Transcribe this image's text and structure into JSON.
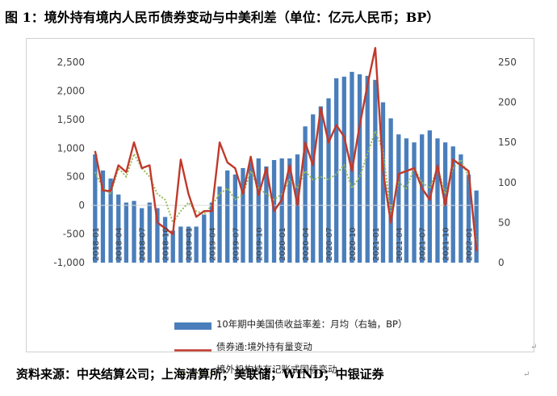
{
  "figure": {
    "title": "图 1：境外持有境内人民币债券变动与中美利差（单位：亿元人民币；BP）",
    "source": "资料来源：中央结算公司；上海清算所；美联储；WIND；中银证券"
  },
  "colors": {
    "bar": "#4a7ebb",
    "line": "#c0392b",
    "dotted": "#9bbb59"
  },
  "chart_data": {
    "type": "bar+line",
    "x": [
      "2018-01",
      "2018-02",
      "2018-03",
      "2018-04",
      "2018-05",
      "2018-06",
      "2018-07",
      "2018-08",
      "2018-09",
      "2018-10",
      "2018-11",
      "2018-12",
      "2019-01",
      "2019-02",
      "2019-03",
      "2019-04",
      "2019-05",
      "2019-06",
      "2019-07",
      "2019-08",
      "2019-09",
      "2019-10",
      "2019-11",
      "2019-12",
      "2020-01",
      "2020-02",
      "2020-03",
      "2020-04",
      "2020-05",
      "2020-06",
      "2020-07",
      "2020-08",
      "2020-09",
      "2020-10",
      "2020-11",
      "2020-12",
      "2021-01",
      "2021-02",
      "2021-03",
      "2021-04",
      "2021-05",
      "2021-06",
      "2021-07",
      "2021-08",
      "2021-09",
      "2021-10",
      "2021-11",
      "2021-12",
      "2022-01",
      "2022-02"
    ],
    "x_tick_labels": [
      "2018-01",
      "2018-04",
      "2018-07",
      "2018-10",
      "2019-01",
      "2019-04",
      "2019-07",
      "2019-10",
      "2020-01",
      "2020-04",
      "2020-07",
      "2020-10",
      "2021-01",
      "2021-04",
      "2021-07",
      "2021-10",
      "2022-01"
    ],
    "left_axis": {
      "ylim": [
        -1000,
        2500
      ],
      "ticks": [
        "-1,000",
        "-500",
        "0",
        "500",
        "1,000",
        "1,500",
        "2,000",
        "2,500"
      ]
    },
    "right_axis": {
      "ylim": [
        0,
        250
      ],
      "ticks": [
        "0",
        "50",
        "100",
        "150",
        "200",
        "250"
      ]
    },
    "series": [
      {
        "name": "10年期中美国债收益率差：月均（右轴，BP）",
        "type": "bar",
        "axis": "right",
        "values": [
          135,
          115,
          105,
          85,
          75,
          77,
          68,
          75,
          68,
          57,
          40,
          45,
          45,
          45,
          60,
          75,
          95,
          115,
          110,
          118,
          125,
          130,
          120,
          128,
          130,
          130,
          135,
          170,
          185,
          195,
          205,
          230,
          232,
          238,
          235,
          233,
          228,
          200,
          180,
          160,
          155,
          150,
          160,
          165,
          155,
          150,
          145,
          135,
          110,
          90
        ]
      },
      {
        "name": "债券通:境外持有量变动",
        "type": "line",
        "axis": "left",
        "values": [
          950,
          260,
          250,
          700,
          580,
          1100,
          650,
          700,
          -300,
          -400,
          -500,
          800,
          200,
          -200,
          -100,
          -100,
          1100,
          750,
          650,
          200,
          850,
          180,
          650,
          -100,
          100,
          700,
          0,
          1100,
          700,
          1700,
          1100,
          1400,
          1200,
          600,
          1400,
          2100,
          2750,
          600,
          -300,
          550,
          600,
          650,
          300,
          100,
          700,
          0,
          800,
          700,
          600,
          -800
        ]
      },
      {
        "name": "境外机构持有记账式国债变动",
        "type": "dotted",
        "axis": "left",
        "values": [
          580,
          300,
          200,
          650,
          500,
          900,
          650,
          500,
          200,
          100,
          -300,
          -100,
          50,
          -100,
          -150,
          0,
          200,
          300,
          100,
          200,
          600,
          300,
          200,
          100,
          200,
          450,
          300,
          600,
          450,
          500,
          450,
          550,
          700,
          300,
          500,
          900,
          1300,
          950,
          -150,
          400,
          300,
          650,
          400,
          300,
          650,
          200,
          650,
          800,
          500,
          -650
        ]
      }
    ]
  }
}
